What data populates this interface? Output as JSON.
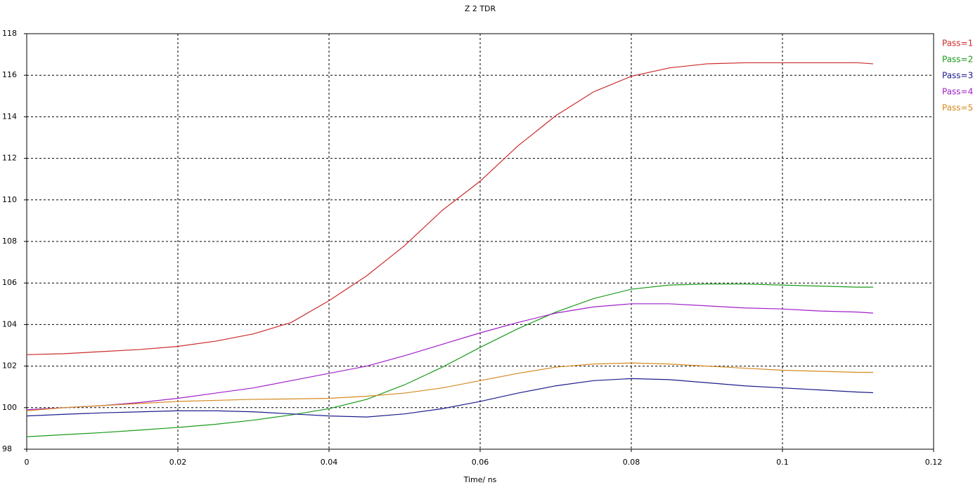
{
  "chart_data": {
    "type": "line",
    "title": "Z 2 TDR",
    "x_label": "Time/ ns",
    "x": [
      0,
      0.005,
      0.01,
      0.015,
      0.02,
      0.025,
      0.03,
      0.035,
      0.04,
      0.045,
      0.05,
      0.055,
      0.06,
      0.065,
      0.07,
      0.075,
      0.08,
      0.085,
      0.09,
      0.095,
      0.1,
      0.105,
      0.11,
      0.112
    ],
    "series": [
      {
        "name": "Pass=1",
        "color": "#cc2b2b",
        "values": [
          102.55,
          102.6,
          102.7,
          102.8,
          102.95,
          103.2,
          103.55,
          104.1,
          105.15,
          106.35,
          107.8,
          109.5,
          110.9,
          112.6,
          114.05,
          115.2,
          115.95,
          116.35,
          116.55,
          116.6,
          116.6,
          116.6,
          116.6,
          116.55
        ]
      },
      {
        "name": "Pass=2",
        "color": "#1a9a1a",
        "values": [
          98.6,
          98.7,
          98.8,
          98.92,
          99.05,
          99.2,
          99.4,
          99.65,
          99.95,
          100.4,
          101.1,
          101.95,
          102.9,
          103.8,
          104.6,
          105.25,
          105.7,
          105.9,
          105.95,
          105.95,
          105.9,
          105.85,
          105.8,
          105.8
        ]
      },
      {
        "name": "Pass=3",
        "color": "#1c1c8c",
        "values": [
          99.6,
          99.68,
          99.75,
          99.8,
          99.85,
          99.85,
          99.8,
          99.7,
          99.6,
          99.55,
          99.7,
          99.95,
          100.3,
          100.7,
          101.05,
          101.3,
          101.4,
          101.35,
          101.2,
          101.05,
          100.95,
          100.85,
          100.75,
          100.72
        ]
      },
      {
        "name": "Pass=4",
        "color": "#a020c8",
        "values": [
          99.9,
          100.0,
          100.1,
          100.25,
          100.45,
          100.7,
          100.95,
          101.3,
          101.65,
          102.0,
          102.5,
          103.05,
          103.6,
          104.1,
          104.55,
          104.85,
          105.0,
          105.0,
          104.9,
          104.8,
          104.75,
          104.65,
          104.6,
          104.55
        ]
      },
      {
        "name": "Pass=5",
        "color": "#d48a20",
        "values": [
          99.85,
          100.0,
          100.1,
          100.2,
          100.3,
          100.35,
          100.4,
          100.42,
          100.45,
          100.55,
          100.7,
          100.95,
          101.3,
          101.65,
          101.95,
          102.1,
          102.15,
          102.1,
          102.0,
          101.9,
          101.8,
          101.75,
          101.7,
          101.7
        ]
      }
    ],
    "xlim": [
      0,
      0.12
    ],
    "xticks": [
      0,
      0.02,
      0.04,
      0.06,
      0.08,
      0.1,
      0.12
    ],
    "ylim": [
      98,
      118
    ],
    "yticks": [
      98,
      100,
      102,
      104,
      106,
      108,
      110,
      112,
      114,
      116,
      118
    ],
    "grid": true,
    "legend": "right"
  }
}
